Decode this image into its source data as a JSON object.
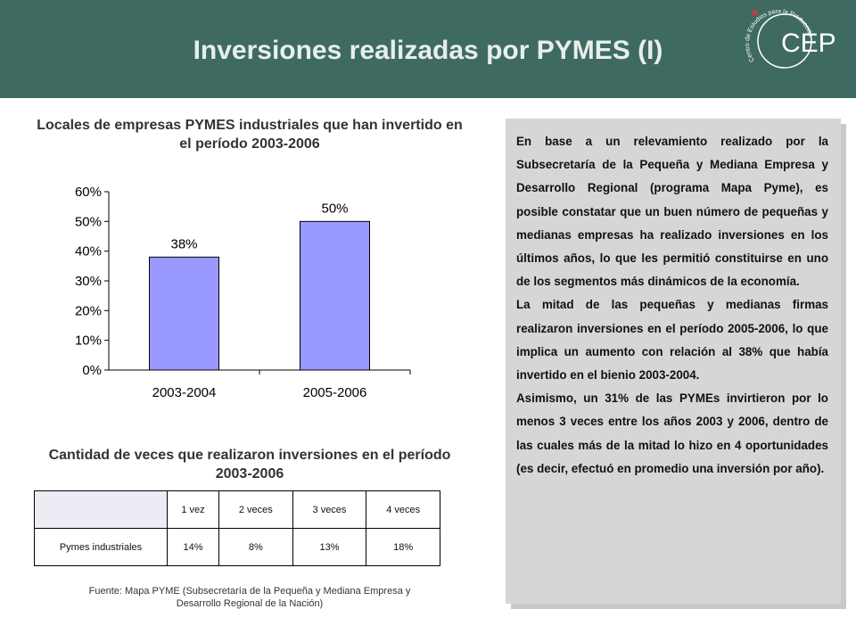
{
  "header": {
    "title": "Inversiones realizadas por PYMES (I)",
    "logo_text": "CEP",
    "logo_arc_text": "Centro de Estudios para la Producción"
  },
  "chart": {
    "heading": "Locales de empresas PYMES industriales que han invertido en el período 2003-2006"
  },
  "chart_data": {
    "type": "bar",
    "categories": [
      "2003-2004",
      "2005-2006"
    ],
    "values": [
      38,
      50
    ],
    "data_labels": [
      "38%",
      "50%"
    ],
    "yticks": [
      "0%",
      "10%",
      "20%",
      "30%",
      "40%",
      "50%",
      "60%"
    ],
    "ylim": [
      0,
      60
    ],
    "bar_color": "#9999ff",
    "grid": false
  },
  "table": {
    "heading": "Cantidad de veces que realizaron inversiones en el período 2003-2006",
    "headers": [
      "",
      "1 vez",
      "2 veces",
      "3 veces",
      "4 veces"
    ],
    "rows": [
      [
        "Pymes industriales",
        "14%",
        "8%",
        "13%",
        "18%"
      ]
    ]
  },
  "source": "Fuente: Mapa PYME (Subsecretaría de la Pequeña y Mediana Empresa y Desarrollo Regional de la Nación)",
  "textbox": {
    "paragraphs": [
      "En base a un relevamiento realizado por la Subsecretaría de la Pequeña y Mediana Empresa y Desarrollo Regional  (programa Mapa Pyme), es posible constatar que un buen número de pequeñas y medianas empresas ha realizado inversiones en los últimos años, lo que les permitió constituirse en uno de los segmentos más dinámicos de la economía.",
      "La mitad de las pequeñas y medianas firmas realizaron inversiones en el período 2005-2006, lo que implica un aumento con relación al 38% que había invertido en el bienio 2003-2004.",
      "Asimismo, un 31% de las PYMEs invirtieron por lo menos 3 veces entre los años 2003 y 2006, dentro de las cuales más de la mitad lo hizo en 4 oportunidades (es decir, efectuó en promedio una inversión por año)."
    ]
  }
}
